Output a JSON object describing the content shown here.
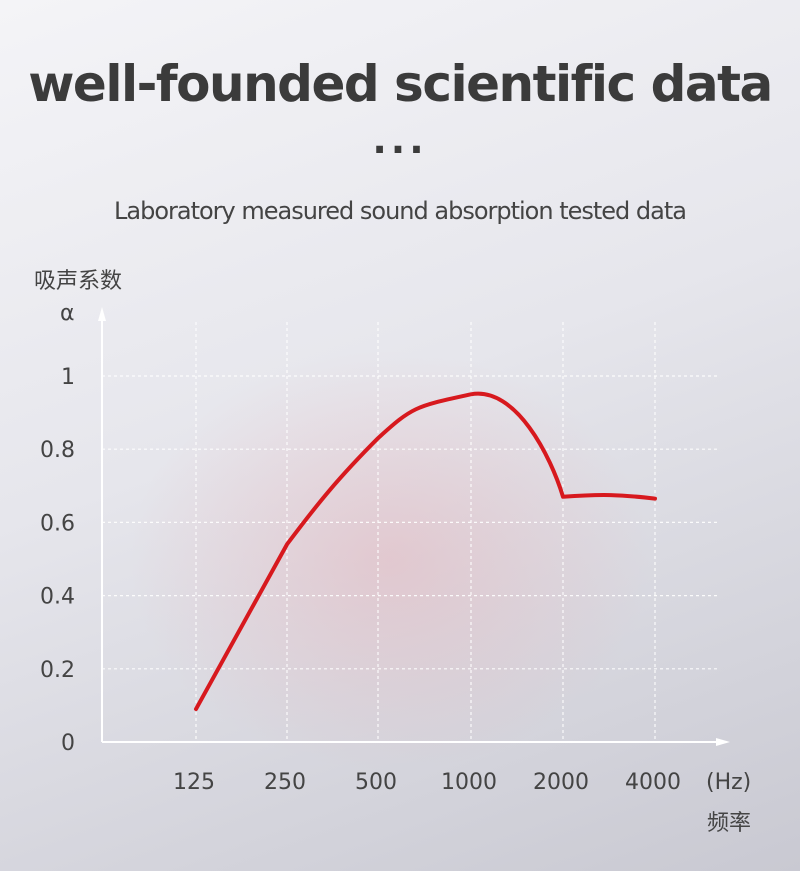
{
  "header": {
    "title": "well-founded scientific data",
    "dots": "...",
    "subtitle": "Laboratory measured sound absorption tested data"
  },
  "chart_data": {
    "type": "line",
    "ylabel": "吸声系数",
    "ysymbol": "α",
    "xunit": "(Hz)",
    "xlabel": "频率",
    "categories": [
      "125",
      "250",
      "500",
      "1000",
      "2000",
      "4000"
    ],
    "series": [
      {
        "values": [
          0.09,
          0.54,
          0.83,
          0.95,
          0.67,
          0.665
        ]
      }
    ],
    "ylim": [
      0,
      1.18
    ],
    "yticks": [
      0,
      0.2,
      0.4,
      0.6,
      0.8,
      1
    ],
    "ytick_labels": [
      "0",
      "0.2",
      "0.4",
      "0.6",
      "0.8",
      "1"
    ],
    "grid": true,
    "line_color": "#d7191e",
    "fill_color": "#e8a0a8"
  }
}
